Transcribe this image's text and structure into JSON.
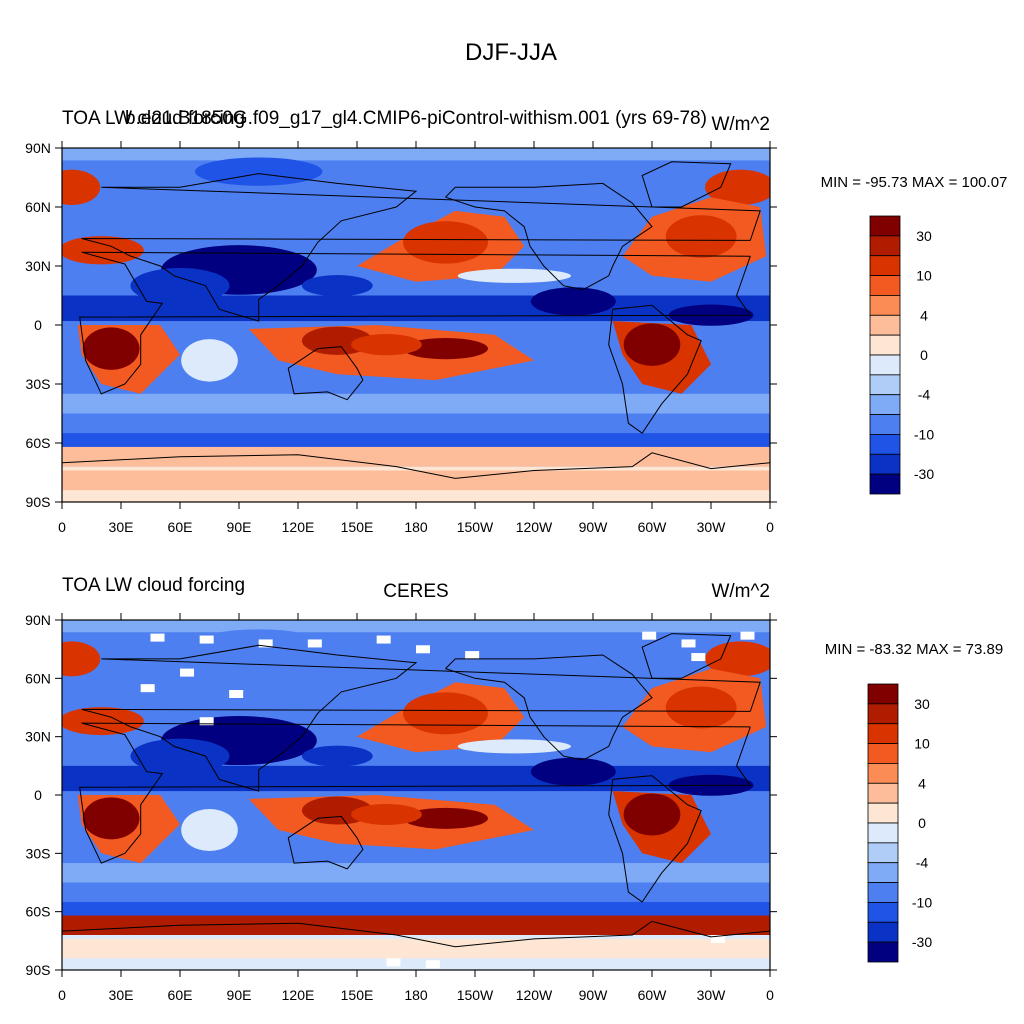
{
  "figure": {
    "main_title": "DJF-JJA"
  },
  "panels": [
    {
      "left_title": "TOA LW cloud forcing",
      "center_title": "",
      "case_title": "b.e21.B1850G.f09_g17_gl4.CMIP6-piControl-withism.001 (yrs 69-78)",
      "units": "W/m^2",
      "min_max": "MIN = -95.73 MAX = 100.07",
      "y_tick_labels": [
        "90N",
        "60N",
        "30N",
        "0",
        "30S",
        "60S",
        "90S"
      ],
      "x_tick_labels": [
        "0",
        "30E",
        "60E",
        "90E",
        "120E",
        "150E",
        "180",
        "150W",
        "120W",
        "90W",
        "60W",
        "30W",
        "0"
      ],
      "colorbar_labels": [
        "30",
        "10",
        "4",
        "0",
        "-4",
        "-10",
        "-30"
      ]
    },
    {
      "left_title": "TOA LW cloud forcing",
      "center_title": "CERES",
      "case_title": "",
      "units": "W/m^2",
      "min_max": "MIN = -83.32 MAX =  73.89",
      "y_tick_labels": [
        "90N",
        "60N",
        "30N",
        "0",
        "30S",
        "60S",
        "90S"
      ],
      "x_tick_labels": [
        "0",
        "30E",
        "60E",
        "90E",
        "120E",
        "150E",
        "180",
        "150W",
        "120W",
        "90W",
        "60W",
        "30W",
        "0"
      ],
      "colorbar_labels": [
        "30",
        "10",
        "4",
        "0",
        "-4",
        "-10",
        "-30"
      ]
    }
  ],
  "colors": {
    "palette": [
      "#800000",
      "#b01c00",
      "#d93300",
      "#f25a21",
      "#fb8c55",
      "#fdbd9a",
      "#fde6d3",
      "#dceafb",
      "#b0cdf7",
      "#7faaf5",
      "#4d7ff0",
      "#1f54e6",
      "#0a32c4",
      "#000080"
    ],
    "no_data": "#ffffff",
    "coast": "#000000"
  }
}
